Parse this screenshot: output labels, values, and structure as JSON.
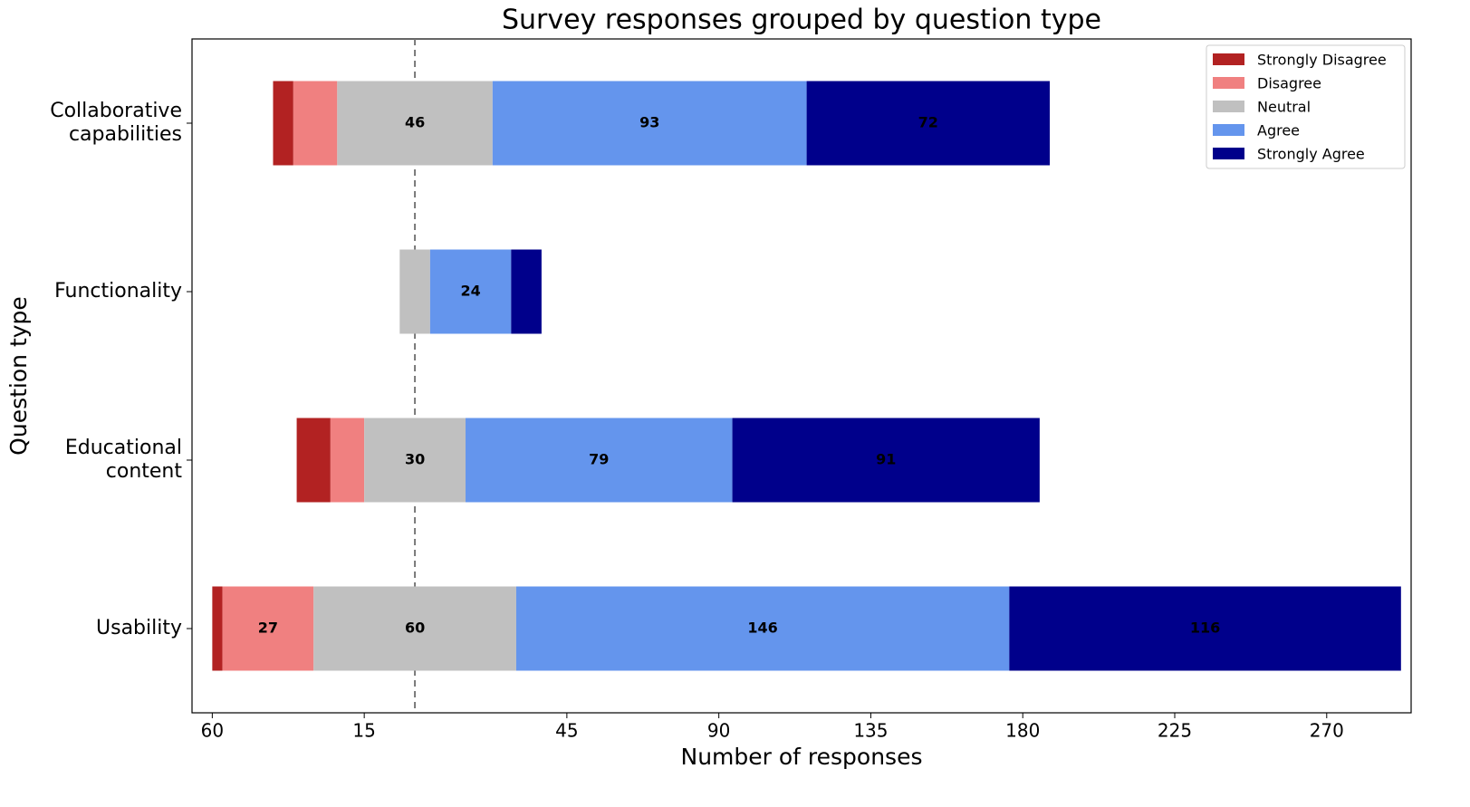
{
  "chart_data": {
    "type": "diverging-bar",
    "title": "Survey responses grouped by question type",
    "xlabel": "Number of responses",
    "ylabel": "Question type",
    "categories": [
      "Collaborative capabilities",
      "Functionality",
      "Educational content",
      "Usability"
    ],
    "series": [
      {
        "name": "Strongly Disagree",
        "color": "#b22222",
        "values": [
          6,
          0,
          10,
          3
        ]
      },
      {
        "name": "Disagree",
        "color": "#f08080",
        "values": [
          13,
          0,
          10,
          27
        ]
      },
      {
        "name": "Neutral",
        "color": "#c0c0c0",
        "values": [
          46,
          9,
          30,
          60
        ]
      },
      {
        "name": "Agree",
        "color": "#6495ed",
        "values": [
          93,
          24,
          79,
          146
        ]
      },
      {
        "name": "Strongly Agree",
        "color": "#00008b",
        "values": [
          72,
          9,
          91,
          116
        ]
      }
    ],
    "xlim": [
      -66,
      295
    ],
    "xticks": [
      {
        "value": -60,
        "label": "60"
      },
      {
        "value": -15,
        "label": "15"
      },
      45,
      90,
      135,
      180,
      225,
      270
    ],
    "legend": "upper right"
  }
}
